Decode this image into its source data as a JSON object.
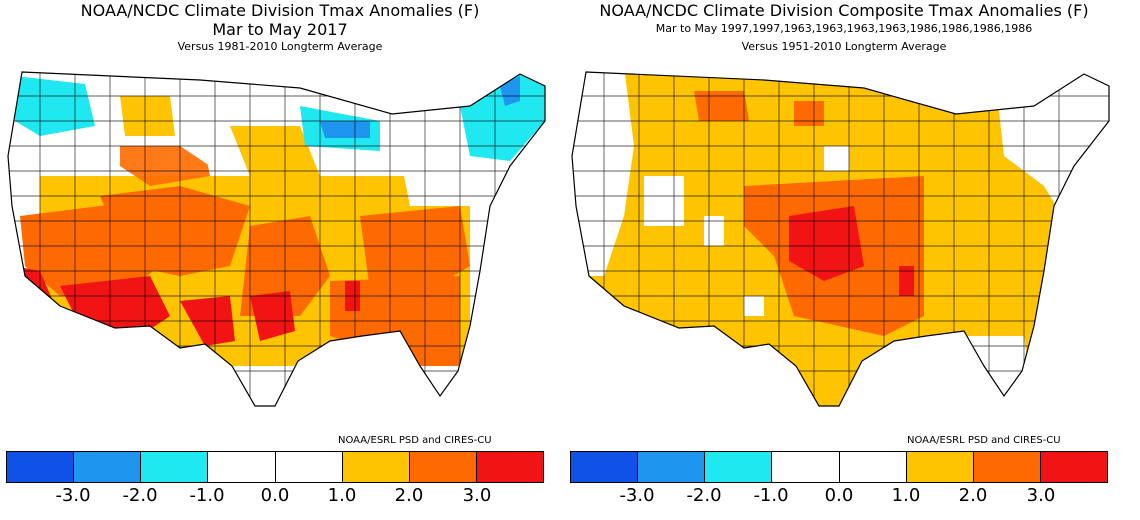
{
  "panels": [
    {
      "title": "NOAA/NCDC Climate Division Tmax Anomalies (F)",
      "subtitle": "Mar to May 2017",
      "baseline": "Versus 1981-2010 Longterm Average",
      "credit": "NOAA/ESRL PSD and CIRES-CU"
    },
    {
      "title": "NOAA/NCDC Climate Division Composite Tmax Anomalies (F)",
      "subtitle": "Mar to May   1997,1997,1963,1963,1963,1963,1986,1986,1986,1986",
      "baseline": "Versus 1951-2010 Longterm Average",
      "credit": "NOAA/ESRL PSD and CIRES-CU"
    }
  ],
  "legend": {
    "colors": [
      "#1052e8",
      "#1e96f0",
      "#20e8f0",
      "#ffffff",
      "#ffffff",
      "#ffc400",
      "#ff6a00",
      "#f21414"
    ],
    "ticks": [
      "-3.0",
      "-2.0",
      "-1.0",
      "0.0",
      "1.0",
      "2.0",
      "3.0"
    ]
  },
  "chart_data": [
    {
      "type": "heatmap",
      "title": "NOAA/NCDC Climate Division Tmax Anomalies (F)",
      "subtitle": "Mar to May 2017",
      "baseline": "Versus 1981-2010 Longterm Average",
      "region_anomaly_bins_F": {
        "Pacific Northwest coast": "-2.0 to -1.0",
        "Upper Michigan / Lake Superior": "-3.0 to -1.0",
        "Northern New England": "-2.0 to -1.0",
        "Northern Plains and Great Lakes": "-1.0 to 1.0",
        "Central Plains and Ohio Valley": "1.0 to 2.0",
        "Southern Plains and Southeast": "2.0 to 3.0",
        "Desert Southwest and Southern California coast": "> 3.0",
        "West Texas": "> 3.0"
      },
      "colorbar_ticks": [
        -3.0,
        -2.0,
        -1.0,
        0.0,
        1.0,
        2.0,
        3.0
      ]
    },
    {
      "type": "heatmap",
      "title": "NOAA/NCDC Climate Division Composite Tmax Anomalies (F)",
      "subtitle": "Mar to May 1997,1997,1963,1963,1963,1963,1986,1986,1986,1986",
      "baseline": "Versus 1951-2010 Longterm Average",
      "region_anomaly_bins_F": {
        "Pacific coast and Northeast": "-1.0 to 1.0",
        "Great Basin, Rockies, Southeast": "1.0 to 2.0",
        "Central Plains and Mississippi Valley": "2.0 to 3.0",
        "Kansas and Oklahoma core": "> 3.0"
      },
      "colorbar_ticks": [
        -3.0,
        -2.0,
        -1.0,
        0.0,
        1.0,
        2.0,
        3.0
      ]
    }
  ]
}
